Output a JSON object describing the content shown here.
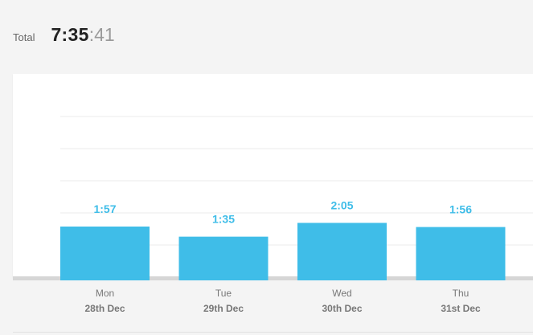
{
  "total": {
    "label": "Total",
    "hours_minutes": "7:35",
    "seconds": ":41"
  },
  "colors": {
    "bar": "#3fbde8",
    "value_label": "#3fbde8",
    "grid": "#ebebeb",
    "axis_text": "#777777"
  },
  "chart_data": {
    "type": "bar",
    "categories": [
      "Mon\n28th Dec",
      "Tue\n29th Dec",
      "Wed\n30th Dec",
      "Thu\n31st Dec"
    ],
    "day_labels": [
      "Mon",
      "Tue",
      "Wed",
      "Thu"
    ],
    "date_labels": [
      "28th Dec",
      "29th Dec",
      "30th Dec",
      "31st Dec"
    ],
    "value_labels": [
      "1:57",
      "1:35",
      "2:05",
      "1:56"
    ],
    "values": [
      117,
      95,
      125,
      116
    ],
    "ylim": [
      0,
      400
    ],
    "grid": true
  }
}
